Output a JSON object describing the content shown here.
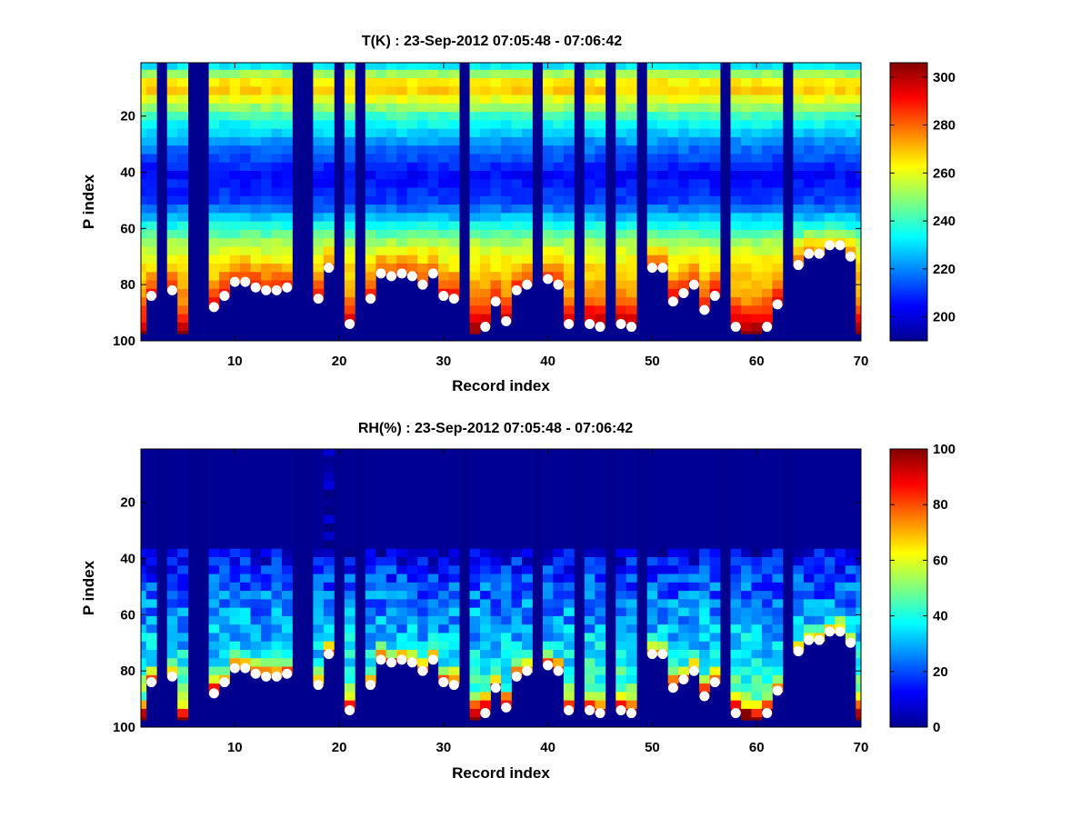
{
  "figure": {
    "background": "#ffffff",
    "panels": [
      "temperature",
      "humidity"
    ]
  },
  "chart_data": [
    {
      "type": "heatmap",
      "id": "temperature",
      "title": "T(K) : 23-Sep-2012 07:05:48 - 07:06:42",
      "xlabel": "Record index",
      "ylabel": "P index",
      "xlim": [
        1,
        70
      ],
      "ylim": [
        1,
        100
      ],
      "y_reversed": true,
      "x_ticks": [
        "10",
        "20",
        "30",
        "40",
        "50",
        "60",
        "70"
      ],
      "y_ticks": [
        "20",
        "40",
        "60",
        "80",
        "100"
      ],
      "colormap": "jet",
      "color_range": [
        190,
        306
      ],
      "colorbar_ticks": [
        "200",
        "220",
        "240",
        "260",
        "280",
        "300"
      ],
      "marker_color": "#ffffff"
    },
    {
      "type": "heatmap",
      "id": "humidity",
      "title": "RH(%) : 23-Sep-2012 07:05:48 - 07:06:42",
      "xlabel": "Record index",
      "ylabel": "P index",
      "xlim": [
        1,
        70
      ],
      "ylim": [
        1,
        100
      ],
      "y_reversed": true,
      "x_ticks": [
        "10",
        "20",
        "30",
        "40",
        "50",
        "60",
        "70"
      ],
      "y_ticks": [
        "20",
        "40",
        "60",
        "80",
        "100"
      ],
      "colormap": "jet",
      "color_range": [
        0,
        100
      ],
      "colorbar_ticks": [
        "0",
        "20",
        "40",
        "60",
        "80",
        "100"
      ],
      "marker_color": "#ffffff"
    }
  ],
  "surface": {
    "records": [
      2,
      4,
      8,
      9,
      10,
      11,
      12,
      13,
      14,
      15,
      18,
      19,
      21,
      23,
      24,
      25,
      26,
      27,
      28,
      29,
      30,
      31,
      34,
      35,
      36,
      37,
      38,
      40,
      41,
      42,
      44,
      45,
      47,
      48,
      50,
      51,
      52,
      53,
      54,
      55,
      56,
      58,
      61,
      62,
      64,
      65,
      66,
      67,
      68,
      69
    ],
    "levels": [
      84,
      82,
      88,
      84,
      79,
      79,
      81,
      82,
      82,
      81,
      85,
      74,
      94,
      85,
      76,
      77,
      76,
      77,
      80,
      76,
      84,
      85,
      95,
      86,
      93,
      82,
      80,
      78,
      80,
      94,
      94,
      95,
      94,
      95,
      74,
      74,
      86,
      83,
      80,
      89,
      84,
      95,
      95,
      87,
      73,
      69,
      69,
      66,
      66,
      70
    ]
  },
  "missing_records": [
    3,
    6,
    7,
    16,
    17,
    20,
    22,
    32,
    39,
    43,
    46,
    49,
    57,
    63
  ]
}
